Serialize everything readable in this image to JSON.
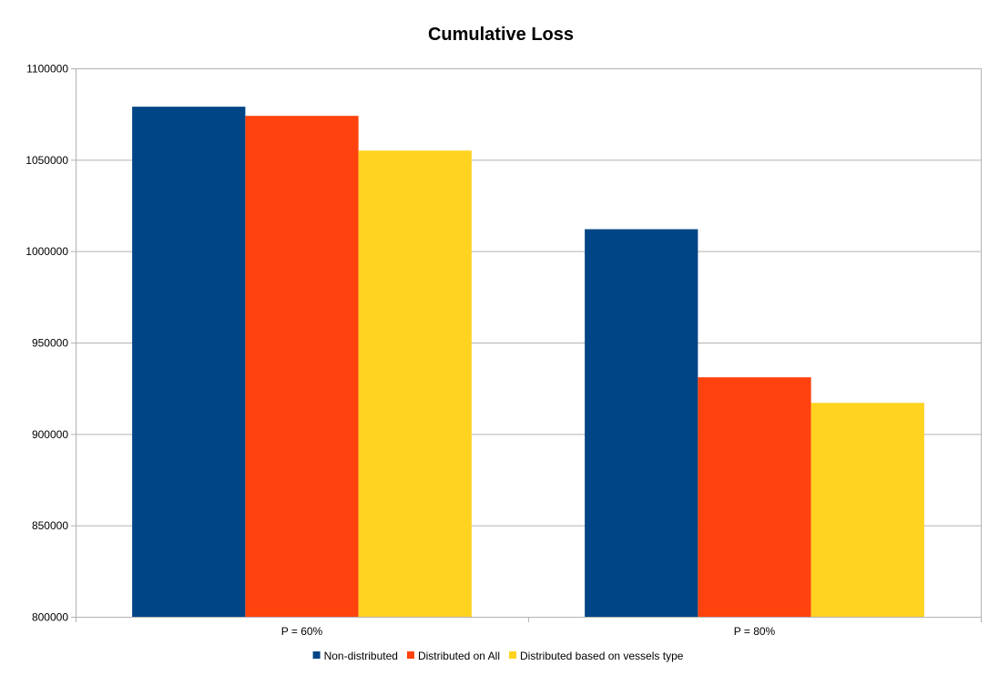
{
  "chart_data": {
    "type": "bar",
    "title": "Cumulative Loss",
    "xlabel": "",
    "ylabel": "",
    "categories": [
      "P = 60%",
      "P = 80%"
    ],
    "series": [
      {
        "name": "Non-distributed",
        "color": "#004586",
        "values": [
          1079000,
          1012000
        ]
      },
      {
        "name": "Distributed on All",
        "color": "#ff420e",
        "values": [
          1074000,
          931000
        ]
      },
      {
        "name": "Distributed based on vessels type",
        "color": "#ffd320",
        "values": [
          1055000,
          917000
        ]
      }
    ],
    "ylim": [
      800000,
      1100000
    ],
    "yticks": [
      800000,
      850000,
      900000,
      950000,
      1000000,
      1050000,
      1100000
    ],
    "grid": true,
    "legend_position": "bottom"
  }
}
